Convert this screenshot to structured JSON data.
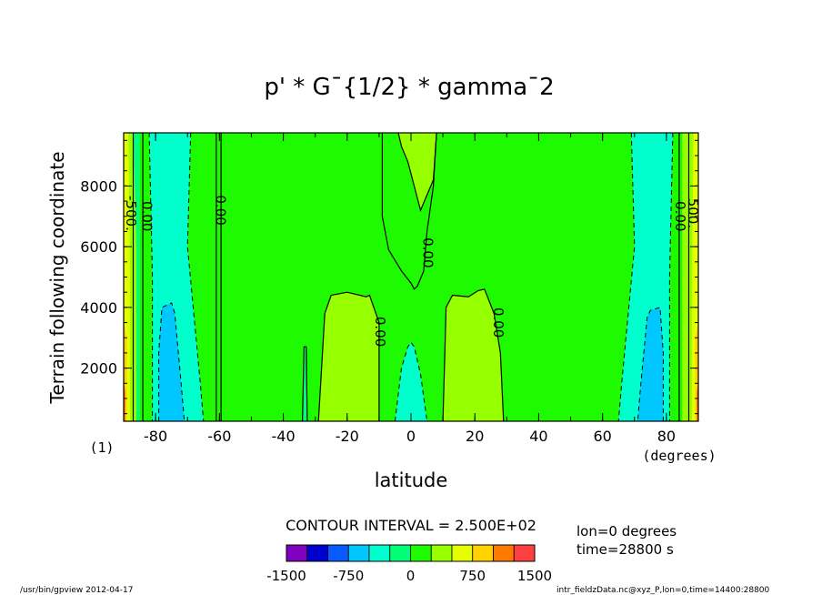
{
  "chart_data": {
    "type": "contour",
    "title": "p' * G¯{1/2} * gamma¯2",
    "xlabel": "latitude",
    "ylabel": "Terrain following coordinate",
    "x_unit_label": "(degrees)",
    "frame_label": "(1)",
    "xlim": [
      -90,
      90
    ],
    "ylim": [
      250,
      9750
    ],
    "x_ticks": [
      -80,
      -60,
      -40,
      -20,
      0,
      20,
      40,
      60,
      80
    ],
    "y_ticks": [
      2000,
      4000,
      6000,
      8000
    ],
    "contour_interval_text": "CONTOUR INTERVAL = 2.500E+02",
    "colorbar": {
      "levels": [
        -1500,
        -1250,
        -1000,
        -750,
        -500,
        -250,
        0,
        250,
        500,
        750,
        1000,
        1250,
        1500
      ],
      "tick_labels": [
        "-1500",
        "-750",
        "0",
        "750",
        "1500"
      ],
      "tick_values": [
        -1500,
        -750,
        0,
        750,
        1500
      ],
      "colors": [
        "#7f00bf",
        "#0000cd",
        "#0a5aff",
        "#00c8ff",
        "#00ffcc",
        "#00ff78",
        "#1efa00",
        "#96ff00",
        "#e6ff00",
        "#ffd200",
        "#ff7800",
        "#ff4040",
        "#ff9f9f"
      ]
    },
    "contour_labels": [
      {
        "text": "0.00",
        "lon": -83,
        "z": 7000
      },
      {
        "text": "-500.",
        "lon": -88,
        "z": 7100
      },
      {
        "text": "0.00",
        "lon": -60,
        "z": 7200
      },
      {
        "text": "0.00",
        "lon": 5,
        "z": 5800
      },
      {
        "text": "0.00",
        "lon": -10,
        "z": 3200
      },
      {
        "text": "0.00",
        "lon": 27,
        "z": 3500
      },
      {
        "text": "0.00",
        "lon": 84,
        "z": 7000
      },
      {
        "text": "500.",
        "lon": 88,
        "z": 7100
      }
    ],
    "note": "Field is near zero (0 to 250) over most of the domain; 250-500 lobes near lat 0 top and lat ±20 lower; -250 to 0 bands near lat ±75 with -500 to -250 cores; strong values at lat ±90 edges."
  },
  "info": {
    "lon_text": "lon=0 degrees",
    "time_text": "time=28800 s"
  },
  "footer": {
    "left": "/usr/bin/gpview  2012-04-17",
    "right": "intr_fieldzData.nc@xyz_P,lon=0,time=14400:28800"
  }
}
